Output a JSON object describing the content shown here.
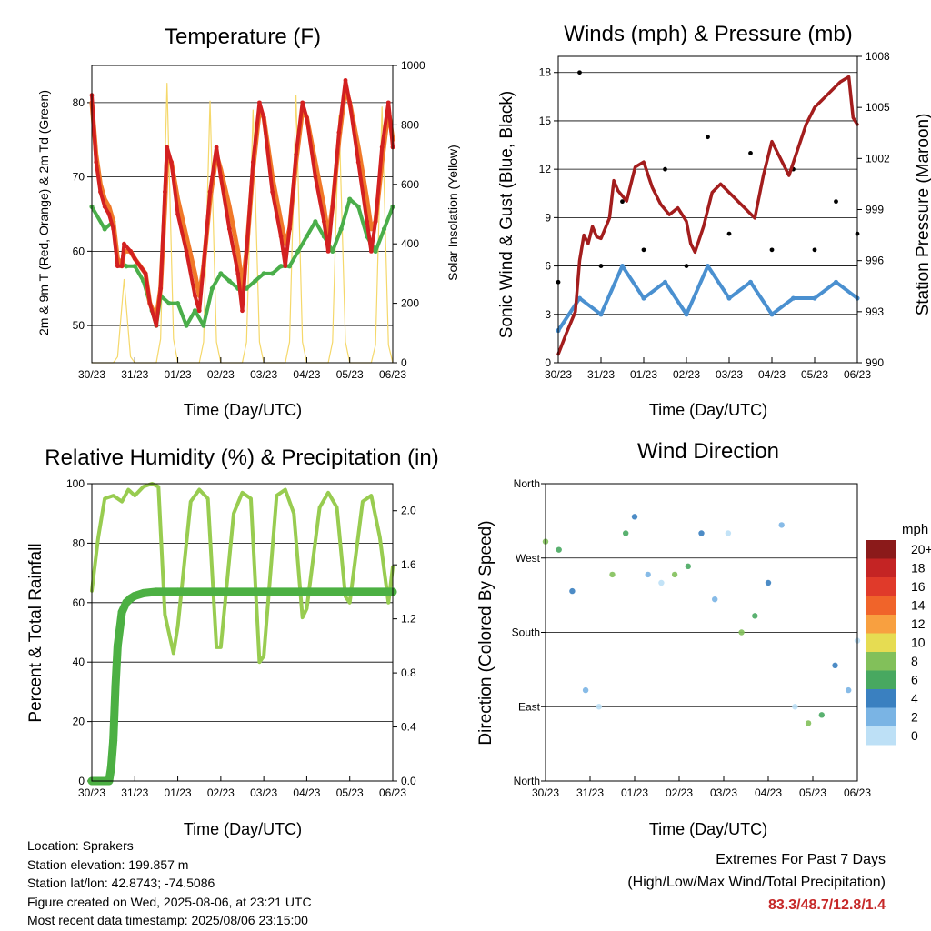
{
  "charts": {
    "temperature": {
      "title": "Temperature (F)",
      "ylabel_left": "2m & 9m T (Red, Orange) & 2m Td (Green)",
      "ylabel_right": "Solar Insolation (Yellow)",
      "xlabel": "Time (Day/UTC)"
    },
    "winds": {
      "title": "Winds (mph) & Pressure (mb)",
      "ylabel_left": "Sonic Wind & Gust (Blue, Black)",
      "ylabel_right": "Station Pressure (Maroon)",
      "xlabel": "Time (Day/UTC)"
    },
    "humidity": {
      "title": "Relative Humidity (%) & Precipitation (in)",
      "ylabel_left": "Percent & Total Rainfall",
      "xlabel": "Time (Day/UTC)"
    },
    "direction": {
      "title": "Wind Direction",
      "ylabel_left": "Direction (Colored By Speed)",
      "xlabel": "Time (Day/UTC)",
      "legend_title": "mph"
    }
  },
  "info": {
    "location": "Location: Sprakers",
    "elevation": "Station elevation: 199.857 m",
    "latlon": "Station lat/lon: 42.8743; -74.5086",
    "created": "Figure created on Wed, 2025-08-06, at 23:21 UTC",
    "recent": "Most recent data timestamp: 2025/08/06 23:15:00"
  },
  "extremes": {
    "line1": "Extremes For Past 7 Days",
    "line2": "(High/Low/Max Wind/Total Precipitation)",
    "values": "83.3/48.7/12.8/1.4"
  },
  "colors": {
    "temp_2m": "#d32020",
    "temp_9m": "#f07828",
    "dewpoint": "#4aae4a",
    "solar": "#f5d86a",
    "wind": "#4a90d0",
    "gust": "#000000",
    "pressure": "#a31d1d",
    "rh": "#98cc50",
    "precip": "#4cb043"
  },
  "chart_data": [
    {
      "type": "line",
      "title": "Temperature (F)",
      "xlabel": "Time (Day/UTC)",
      "ylabel": "2m & 9m T (Red, Orange) & 2m Td (Green)",
      "ylabel_right": "Solar Insolation (Yellow)",
      "x_ticks": [
        "30/23",
        "31/23",
        "01/23",
        "02/23",
        "03/23",
        "04/23",
        "05/23",
        "06/23"
      ],
      "ylim": [
        45,
        85
      ],
      "y_ticks": [
        50,
        60,
        70,
        80
      ],
      "ylim_right": [
        0,
        1000
      ],
      "y_ticks_right": [
        0,
        200,
        400,
        600,
        800,
        1000
      ],
      "series": [
        {
          "name": "2m T",
          "color": "#d32020",
          "axis": "left",
          "x": [
            0,
            0.1,
            0.2,
            0.3,
            0.4,
            0.5,
            0.6,
            0.7,
            0.75,
            0.9,
            1.0,
            1.25,
            1.35,
            1.5,
            1.6,
            1.7,
            1.75,
            1.85,
            2.0,
            2.2,
            2.4,
            2.5,
            2.6,
            2.75,
            2.9,
            3.0,
            3.2,
            3.4,
            3.5,
            3.6,
            3.75,
            3.9,
            4.0,
            4.2,
            4.4,
            4.5,
            4.6,
            4.75,
            4.9,
            5.0,
            5.2,
            5.4,
            5.5,
            5.6,
            5.75,
            5.9,
            6.0,
            6.2,
            6.4,
            6.5,
            6.6,
            6.75,
            6.9,
            7.0
          ],
          "y": [
            81,
            72,
            68,
            66,
            65,
            63,
            58,
            58,
            61,
            60,
            59,
            57,
            53,
            50,
            55,
            68,
            74,
            72,
            65,
            60,
            54,
            52,
            58,
            68,
            74,
            70,
            63,
            57,
            52,
            60,
            72,
            80,
            78,
            68,
            62,
            58,
            63,
            73,
            80,
            78,
            70,
            64,
            60,
            66,
            76,
            83,
            80,
            72,
            64,
            60,
            64,
            74,
            80,
            74
          ]
        },
        {
          "name": "9m T",
          "color": "#f07828",
          "axis": "left",
          "x": [
            0,
            0.1,
            0.2,
            0.3,
            0.4,
            0.5,
            0.6,
            0.7,
            0.75,
            0.9,
            1.0,
            1.25,
            1.35,
            1.5,
            1.6,
            1.7,
            1.75,
            1.85,
            2.0,
            2.2,
            2.4,
            2.5,
            2.6,
            2.75,
            2.9,
            3.0,
            3.2,
            3.4,
            3.5,
            3.6,
            3.75,
            3.9,
            4.0,
            4.2,
            4.4,
            4.5,
            4.6,
            4.75,
            4.9,
            5.0,
            5.2,
            5.4,
            5.5,
            5.6,
            5.75,
            5.9,
            6.0,
            6.2,
            6.4,
            6.5,
            6.6,
            6.75,
            6.9,
            7.0
          ],
          "y": [
            80,
            73,
            69,
            67,
            66,
            64,
            59,
            58,
            60,
            60,
            59,
            57,
            53,
            51,
            55,
            66,
            73,
            72,
            67,
            62,
            57,
            54,
            58,
            67,
            73,
            71,
            66,
            60,
            55,
            60,
            71,
            79,
            78,
            70,
            64,
            61,
            63,
            72,
            79,
            78,
            72,
            66,
            62,
            66,
            75,
            82,
            80,
            74,
            67,
            63,
            64,
            72,
            79,
            75
          ]
        },
        {
          "name": "2m Td",
          "color": "#4aae4a",
          "axis": "left",
          "x": [
            0,
            0.3,
            0.5,
            0.6,
            0.8,
            1.0,
            1.2,
            1.4,
            1.5,
            1.6,
            1.8,
            2.0,
            2.2,
            2.4,
            2.6,
            2.8,
            3.0,
            3.2,
            3.4,
            3.6,
            3.8,
            4.0,
            4.2,
            4.4,
            4.6,
            4.8,
            5.0,
            5.2,
            5.4,
            5.6,
            5.8,
            6.0,
            6.2,
            6.4,
            6.6,
            6.8,
            7.0
          ],
          "y": [
            66,
            63,
            64,
            59,
            58,
            58,
            56,
            52,
            50,
            54,
            53,
            53,
            50,
            52,
            50,
            55,
            57,
            56,
            55,
            55,
            56,
            57,
            57,
            58,
            58,
            60,
            62,
            64,
            62,
            60,
            63,
            67,
            66,
            62,
            60,
            63,
            66
          ]
        },
        {
          "name": "Solar Insolation",
          "color": "#f5d86a",
          "axis": "right",
          "x": [
            0,
            0.5,
            0.6,
            0.75,
            0.9,
            1.0,
            1.5,
            1.6,
            1.75,
            1.9,
            2.0,
            2.5,
            2.6,
            2.75,
            2.9,
            3.0,
            3.5,
            3.6,
            3.75,
            3.9,
            4.0,
            4.5,
            4.6,
            4.75,
            4.9,
            5.0,
            5.5,
            5.6,
            5.75,
            5.9,
            6.0,
            6.5,
            6.6,
            6.75,
            6.9,
            7.0
          ],
          "y": [
            0,
            0,
            20,
            280,
            20,
            0,
            0,
            80,
            940,
            80,
            0,
            0,
            70,
            880,
            70,
            0,
            0,
            70,
            850,
            70,
            0,
            0,
            70,
            900,
            70,
            0,
            0,
            70,
            830,
            70,
            0,
            0,
            60,
            860,
            60,
            0
          ]
        }
      ]
    },
    {
      "type": "scatter",
      "title": "Winds (mph) & Pressure (mb)",
      "xlabel": "Time (Day/UTC)",
      "ylabel": "Sonic Wind & Gust (Blue, Black)",
      "ylabel_right": "Station Pressure (Maroon)",
      "x_ticks": [
        "30/23",
        "31/23",
        "01/23",
        "02/23",
        "03/23",
        "04/23",
        "05/23",
        "06/23"
      ],
      "ylim": [
        0,
        19
      ],
      "y_ticks": [
        0,
        3,
        6,
        9,
        12,
        15,
        18
      ],
      "ylim_right": [
        990,
        1008
      ],
      "y_ticks_right": [
        990,
        993,
        996,
        999,
        1002,
        1005,
        1008
      ],
      "series": [
        {
          "name": "Pressure",
          "color": "#a31d1d",
          "axis": "right",
          "x": [
            0,
            0.2,
            0.4,
            0.5,
            0.6,
            0.7,
            0.8,
            0.9,
            1.0,
            1.2,
            1.3,
            1.4,
            1.6,
            1.8,
            2.0,
            2.2,
            2.4,
            2.6,
            2.8,
            3.0,
            3.1,
            3.2,
            3.4,
            3.6,
            3.8,
            4.0,
            4.2,
            4.4,
            4.6,
            4.8,
            5.0,
            5.2,
            5.4,
            5.6,
            5.8,
            6.0,
            6.2,
            6.4,
            6.6,
            6.8,
            6.9,
            7.0
          ],
          "y": [
            990.5,
            991.8,
            993,
            996,
            997.5,
            997,
            998,
            997.4,
            997.3,
            998.5,
            1000.7,
            1000.1,
            999.5,
            1001.5,
            1001.8,
            1000.3,
            999.3,
            998.7,
            999.1,
            998.3,
            997,
            996.5,
            998,
            1000,
            1000.5,
            1000,
            999.5,
            999,
            998.5,
            1001,
            1003,
            1002,
            1001,
            1002.5,
            1004,
            1005,
            1005.5,
            1006,
            1006.5,
            1006.8,
            1004.4,
            1004
          ]
        },
        {
          "name": "Wind",
          "color": "#4a90d0",
          "axis": "left",
          "x": [
            0,
            0.5,
            1.0,
            1.5,
            2.0,
            2.5,
            3.0,
            3.5,
            4.0,
            4.5,
            5.0,
            5.5,
            6.0,
            6.5,
            7.0
          ],
          "y": [
            2,
            4,
            3,
            6,
            4,
            5,
            3,
            6,
            4,
            5,
            3,
            4,
            4,
            5,
            4
          ]
        },
        {
          "name": "Gust",
          "color": "#000000",
          "axis": "left",
          "x": [
            0,
            0.5,
            1.0,
            1.5,
            2.0,
            2.5,
            3.0,
            3.5,
            4.0,
            4.5,
            5.0,
            5.5,
            6.0,
            6.5,
            7.0
          ],
          "y": [
            5,
            18,
            6,
            10,
            7,
            12,
            6,
            14,
            8,
            13,
            7,
            12,
            7,
            10,
            8
          ]
        }
      ]
    },
    {
      "type": "line",
      "title": "Relative Humidity (%) & Precipitation (in)",
      "xlabel": "Time (Day/UTC)",
      "ylabel": "Percent & Total Rainfall",
      "x_ticks": [
        "30/23",
        "31/23",
        "01/23",
        "02/23",
        "03/23",
        "04/23",
        "05/23",
        "06/23"
      ],
      "ylim": [
        0,
        100
      ],
      "y_ticks": [
        0,
        20,
        40,
        60,
        80,
        100
      ],
      "ylim_right": [
        0,
        2.2
      ],
      "y_ticks_right": [
        0.0,
        0.4,
        0.8,
        1.2,
        1.6,
        2.0
      ],
      "series": [
        {
          "name": "Relative Humidity",
          "color": "#98cc50",
          "axis": "left",
          "x": [
            0,
            0.15,
            0.3,
            0.5,
            0.7,
            0.85,
            1.0,
            1.2,
            1.4,
            1.55,
            1.7,
            1.9,
            2.0,
            2.3,
            2.5,
            2.7,
            2.9,
            3.0,
            3.3,
            3.5,
            3.7,
            3.9,
            4.0,
            4.3,
            4.5,
            4.7,
            4.9,
            5.0,
            5.3,
            5.5,
            5.7,
            5.9,
            6.0,
            6.3,
            6.5,
            6.7,
            6.9,
            7.0
          ],
          "y": [
            64,
            82,
            95,
            96,
            94,
            98,
            96,
            99,
            100,
            99,
            56,
            43,
            52,
            94,
            98,
            95,
            45,
            45,
            90,
            97,
            95,
            40,
            42,
            96,
            98,
            90,
            55,
            58,
            92,
            97,
            92,
            62,
            60,
            94,
            96,
            82,
            60,
            72
          ]
        },
        {
          "name": "Total Precipitation",
          "color": "#4cb043",
          "axis": "right",
          "x": [
            0,
            0.4,
            0.45,
            0.5,
            0.55,
            0.6,
            0.7,
            0.8,
            0.9,
            1.0,
            1.2,
            1.5,
            2.0,
            3.0,
            4.0,
            5.0,
            6.0,
            7.0
          ],
          "y": [
            0,
            0,
            0.1,
            0.3,
            0.7,
            1.0,
            1.25,
            1.32,
            1.35,
            1.37,
            1.39,
            1.4,
            1.4,
            1.4,
            1.4,
            1.4,
            1.4,
            1.4
          ]
        }
      ]
    },
    {
      "type": "scatter",
      "title": "Wind Direction",
      "xlabel": "Time (Day/UTC)",
      "ylabel": "Direction (Colored By Speed)",
      "x_ticks": [
        "30/23",
        "31/23",
        "01/23",
        "02/23",
        "03/23",
        "04/23",
        "05/23",
        "06/23"
      ],
      "y_ticks": [
        "North",
        "East",
        "South",
        "West",
        "North"
      ],
      "legend": {
        "title": "mph",
        "labels": [
          "20+",
          "18",
          "16",
          "14",
          "12",
          "10",
          "8",
          "6",
          "4",
          "2",
          "0"
        ],
        "colors": [
          "#8b1a1a",
          "#c42424",
          "#e03a2a",
          "#f0642a",
          "#f8a040",
          "#e6dc52",
          "#82c05a",
          "#48a860",
          "#3a80c0",
          "#7ab4e4",
          "#bde0f6"
        ]
      },
      "series": [
        {
          "name": "Direction",
          "x": [
            0,
            0.3,
            0.6,
            0.9,
            1.2,
            1.5,
            1.8,
            2.0,
            2.3,
            2.6,
            2.9,
            3.2,
            3.5,
            3.8,
            4.1,
            4.4,
            4.7,
            5.0,
            5.3,
            5.6,
            5.9,
            6.2,
            6.5,
            6.8,
            7.0
          ],
          "y": [
            290,
            280,
            230,
            110,
            90,
            250,
            300,
            320,
            250,
            240,
            250,
            260,
            300,
            220,
            300,
            180,
            200,
            240,
            310,
            90,
            70,
            80,
            140,
            110,
            170
          ]
        }
      ]
    }
  ]
}
